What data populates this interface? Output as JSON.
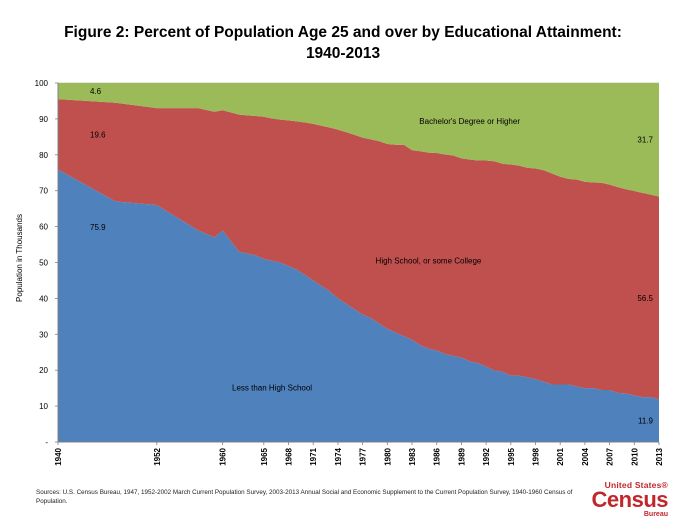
{
  "figure": {
    "title_line1": "Figure 2: Percent of Population Age 25 and over by Educational Attainment:",
    "title_line2": "1940-2013"
  },
  "chart_data": {
    "type": "area",
    "stacked": true,
    "ylabel": "Population in Thousands",
    "ylim": [
      0,
      100
    ],
    "yticks": [
      "-",
      "10",
      "20",
      "30",
      "40",
      "50",
      "60",
      "70",
      "80",
      "90",
      "100"
    ],
    "xlim": [
      1940,
      2013
    ],
    "xticks": [
      "1940",
      "1952",
      "1960",
      "1965",
      "1968",
      "1971",
      "1974",
      "1977",
      "1980",
      "1983",
      "1986",
      "1989",
      "1992",
      "1995",
      "1998",
      "2001",
      "2004",
      "2007",
      "2010",
      "2013"
    ],
    "x": [
      1940,
      1947,
      1952,
      1957,
      1959,
      1960,
      1962,
      1964,
      1965,
      1966,
      1967,
      1968,
      1969,
      1970,
      1971,
      1972,
      1973,
      1974,
      1975,
      1976,
      1977,
      1978,
      1979,
      1980,
      1981,
      1982,
      1983,
      1984,
      1985,
      1986,
      1987,
      1988,
      1989,
      1990,
      1991,
      1992,
      1993,
      1994,
      1995,
      1996,
      1997,
      1998,
      1999,
      2000,
      2001,
      2002,
      2003,
      2004,
      2005,
      2006,
      2007,
      2008,
      2009,
      2010,
      2011,
      2012,
      2013
    ],
    "series": [
      {
        "name": "Less than High School",
        "color": "#4f81bd",
        "values": [
          75.9,
          67.0,
          66.0,
          59.0,
          57.0,
          58.9,
          53.0,
          52.0,
          51.0,
          50.5,
          50.0,
          49.0,
          48.0,
          46.5,
          45.0,
          43.5,
          42.0,
          40.0,
          38.5,
          37.0,
          35.5,
          34.5,
          33.0,
          31.5,
          30.5,
          29.5,
          28.5,
          27.0,
          26.0,
          25.5,
          24.5,
          24.0,
          23.5,
          22.5,
          22.0,
          21.0,
          20.0,
          19.5,
          18.5,
          18.5,
          18.0,
          17.5,
          16.8,
          16.0,
          16.0,
          16.0,
          15.5,
          15.0,
          15.0,
          14.5,
          14.5,
          13.7,
          13.5,
          13.0,
          12.5,
          12.5,
          11.9
        ]
      },
      {
        "name": "High School, or some College",
        "color": "#c0504d",
        "values": [
          19.6,
          27.5,
          27.0,
          34.0,
          35.0,
          33.5,
          38.2,
          38.8,
          39.6,
          39.6,
          39.8,
          40.6,
          41.3,
          42.5,
          43.6,
          44.6,
          45.6,
          47.0,
          47.8,
          48.6,
          49.3,
          49.8,
          50.8,
          51.5,
          52.3,
          53.3,
          52.8,
          54.0,
          54.6,
          55.0,
          55.6,
          55.8,
          55.5,
          56.2,
          56.4,
          57.4,
          58.2,
          58.0,
          58.8,
          58.5,
          58.4,
          58.7,
          58.9,
          58.8,
          57.9,
          57.3,
          57.6,
          57.5,
          57.3,
          57.7,
          57.2,
          57.3,
          56.9,
          56.9,
          56.9,
          56.4,
          56.5
        ]
      },
      {
        "name": "Bachelor's Degree or Higher",
        "color": "#9bbb59",
        "values": [
          4.6,
          5.5,
          7.0,
          7.0,
          8.0,
          7.6,
          8.8,
          9.2,
          9.4,
          9.9,
          10.2,
          10.4,
          10.7,
          11.0,
          11.4,
          11.9,
          12.4,
          13.0,
          13.7,
          14.4,
          15.2,
          15.7,
          16.2,
          17.0,
          17.2,
          17.2,
          18.7,
          19.0,
          19.4,
          19.5,
          19.9,
          20.2,
          21.0,
          21.3,
          21.6,
          21.6,
          21.8,
          22.5,
          22.7,
          23.0,
          23.6,
          23.8,
          24.3,
          25.2,
          26.1,
          26.7,
          26.9,
          27.5,
          27.7,
          27.8,
          28.3,
          29.0,
          29.6,
          30.1,
          30.6,
          31.1,
          31.7
        ]
      }
    ],
    "annotations": [
      {
        "text": "Bachelor's Degree or Higher",
        "series": 2
      },
      {
        "text": "High School, or some College",
        "series": 1
      },
      {
        "text": "Less than High School",
        "series": 0
      },
      {
        "text": "4.6",
        "series": 2,
        "x": 1940
      },
      {
        "text": "19.6",
        "series": 1,
        "x": 1940
      },
      {
        "text": "75.9",
        "series": 0,
        "x": 1940
      },
      {
        "text": "31.7",
        "series": 2,
        "x": 2013
      },
      {
        "text": "56.5",
        "series": 1,
        "x": 2013
      },
      {
        "text": "11.9",
        "series": 0,
        "x": 2013
      }
    ],
    "grid": true,
    "legend": "none"
  },
  "footer": {
    "sources": "Sources: U.S. Census Bureau, 1947, 1952-2002 March Current Population Survey, 2003-2013 Annual Social and Economic Supplement to the Current Population Survey, 1940-1960 Census of Population."
  },
  "logo": {
    "line1": "United States®",
    "line2": "Census",
    "line3": "Bureau",
    "color": "#c0272d"
  }
}
